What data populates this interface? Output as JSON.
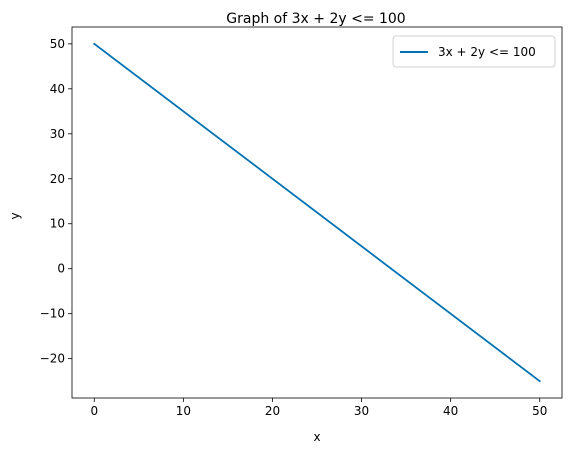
{
  "chart_data": {
    "type": "line",
    "title": "Graph of 3x + 2y <= 100",
    "xlabel": "x",
    "ylabel": "y",
    "xlim": [
      -2.5,
      52.5
    ],
    "ylim": [
      -28.75,
      53.75
    ],
    "xticks": [
      0,
      10,
      20,
      30,
      40,
      50
    ],
    "yticks": [
      -20,
      -10,
      0,
      10,
      20,
      30,
      40,
      50
    ],
    "xtick_labels": [
      "0",
      "10",
      "20",
      "30",
      "40",
      "50"
    ],
    "ytick_labels": [
      "−20",
      "−10",
      "0",
      "10",
      "20",
      "30",
      "40",
      "50"
    ],
    "grid": false,
    "legend_position": "top-right",
    "series": [
      {
        "name": "3x + 2y <= 100",
        "color": "#0072b2",
        "x": [
          0,
          50
        ],
        "y": [
          50,
          -25
        ]
      }
    ]
  }
}
